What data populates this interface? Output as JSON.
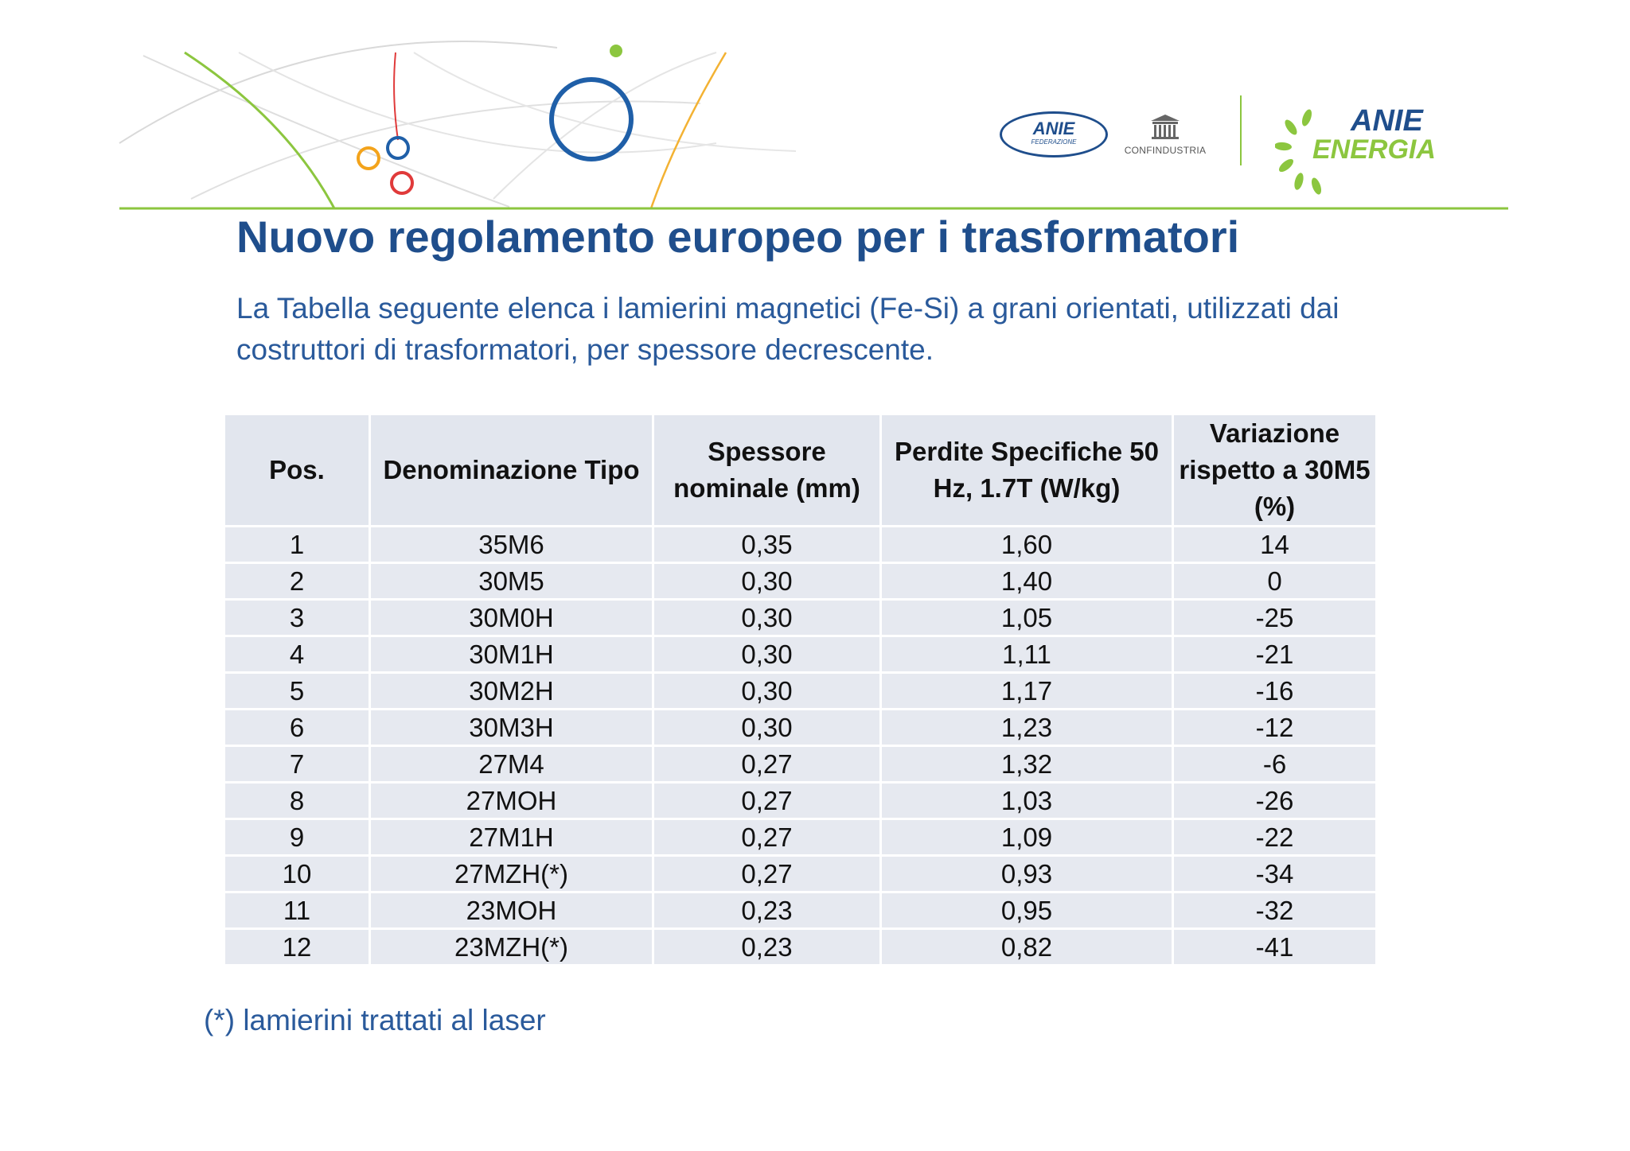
{
  "header": {
    "logos": {
      "anie_federazione": {
        "wordmark": "ANIE",
        "caption": "FEDERAZIONE"
      },
      "confindustria": {
        "label": "CONFINDUSTRIA",
        "icon": "building-icon"
      },
      "anie_energia": {
        "word1": "ANIE",
        "word2": "ENERGIA",
        "icon": "sunburst-icon"
      }
    },
    "colors": {
      "accent_green": "#8cc63f",
      "title_blue": "#1f4e8c",
      "text_blue": "#2a5a9b"
    }
  },
  "slide": {
    "title": "Nuovo regolamento europeo per i trasformatori",
    "subtitle": "La Tabella seguente elenca i lamierini magnetici (Fe-Si) a grani orientati, utilizzati dai costruttori di trasformatori, per spessore decrescente."
  },
  "table": {
    "headers": [
      "Pos.",
      "Denominazione Tipo",
      "Spessore nominale  (mm)",
      "Perdite Specifiche 50 Hz, 1.7T (W/kg)",
      "Variazione rispetto a 30M5 (%)"
    ],
    "rows": [
      [
        "1",
        "35M6",
        "0,35",
        "1,60",
        "14"
      ],
      [
        "2",
        "30M5",
        "0,30",
        "1,40",
        "0"
      ],
      [
        "3",
        "30M0H",
        "0,30",
        "1,05",
        "-25"
      ],
      [
        "4",
        "30M1H",
        "0,30",
        "1,11",
        "-21"
      ],
      [
        "5",
        "30M2H",
        "0,30",
        "1,17",
        "-16"
      ],
      [
        "6",
        "30M3H",
        "0,30",
        "1,23",
        "-12"
      ],
      [
        "7",
        "27M4",
        "0,27",
        "1,32",
        "-6"
      ],
      [
        "8",
        "27MOH",
        "0,27",
        "1,03",
        "-26"
      ],
      [
        "9",
        "27M1H",
        "0,27",
        "1,09",
        "-22"
      ],
      [
        "10",
        "27MZH(*)",
        "0,27",
        "0,93",
        "-34"
      ],
      [
        "11",
        "23MOH",
        "0,23",
        "0,95",
        "-32"
      ],
      [
        "12",
        "23MZH(*)",
        "0,23",
        "0,82",
        "-41"
      ]
    ]
  },
  "footnote": "(*) lamierini trattati al laser"
}
